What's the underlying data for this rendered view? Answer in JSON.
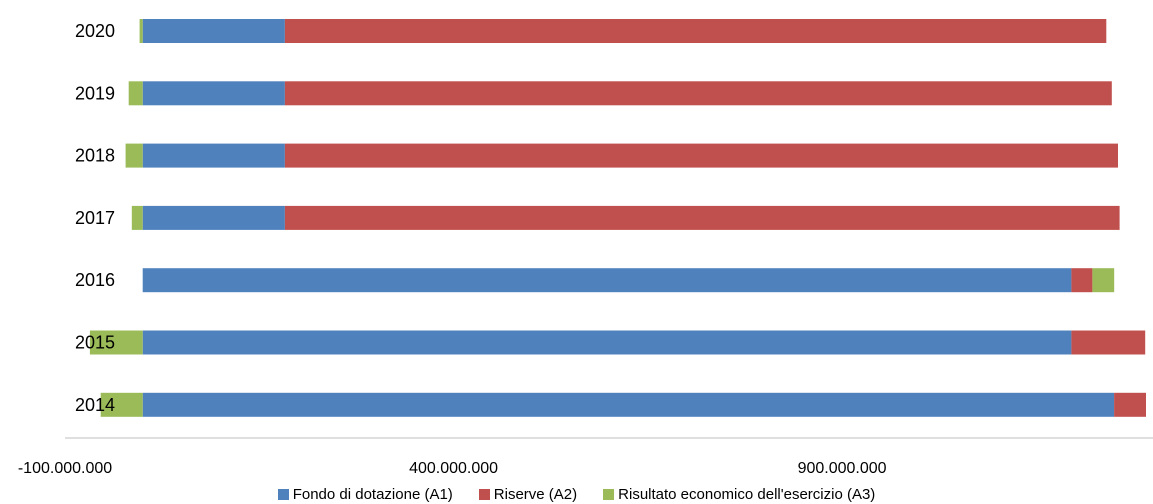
{
  "chart_data": {
    "type": "bar",
    "orientation": "horizontal",
    "stacked": true,
    "title": "",
    "xlabel": "",
    "ylabel": "",
    "categories": [
      "2020",
      "2019",
      "2018",
      "2017",
      "2016",
      "2015",
      "2014"
    ],
    "series": [
      {
        "name": "Fondo di dotazione (A1)",
        "color": "#4f81bd",
        "values": [
          183000000,
          183000000,
          183000000,
          183000000,
          1195000000,
          1195000000,
          1250000000
        ]
      },
      {
        "name": "Riserve (A2)",
        "color": "#c0504d",
        "values": [
          1057000000,
          1064000000,
          1072000000,
          1074000000,
          27000000,
          95000000,
          41000000
        ]
      },
      {
        "name": "Risultato economico dell'esercizio (A3)",
        "color": "#9bbb59",
        "values": [
          -4000000,
          -18000000,
          -22000000,
          -14000000,
          28000000,
          -68000000,
          -54000000
        ]
      }
    ],
    "xlim": [
      -100000000,
      1300000000
    ],
    "x_ticks": [
      -100000000,
      400000000,
      900000000
    ],
    "x_tick_labels": [
      "-100.000.000",
      "400.000.000",
      "900.000.000"
    ],
    "grid": false,
    "legend_position": "bottom"
  }
}
